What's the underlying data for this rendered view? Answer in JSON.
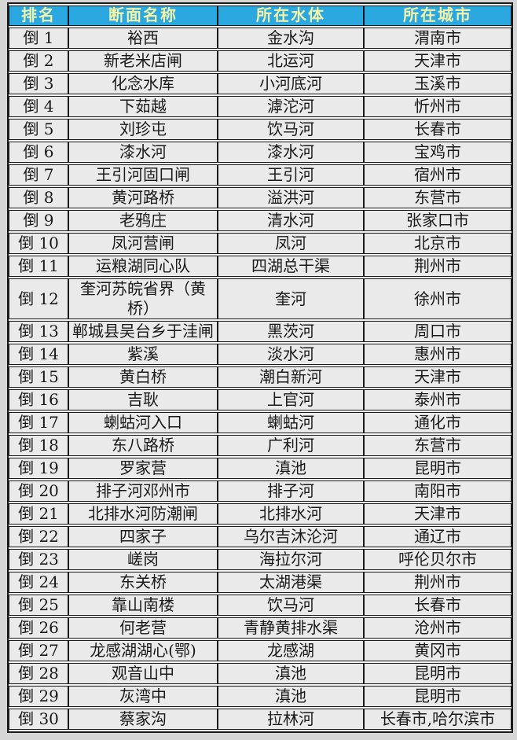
{
  "table": {
    "headers": [
      "排名",
      "断面名称",
      "所在水体",
      "所在城市"
    ],
    "rows": [
      {
        "rank": "倒 1",
        "name": "裕西",
        "water": "金水沟",
        "city": "渭南市"
      },
      {
        "rank": "倒 2",
        "name": "新老米店闸",
        "water": "北运河",
        "city": "天津市"
      },
      {
        "rank": "倒 3",
        "name": "化念水库",
        "water": "小河底河",
        "city": "玉溪市"
      },
      {
        "rank": "倒 4",
        "name": "下茹越",
        "water": "滹沱河",
        "city": "忻州市"
      },
      {
        "rank": "倒 5",
        "name": "刘珍屯",
        "water": "饮马河",
        "city": "长春市"
      },
      {
        "rank": "倒 6",
        "name": "漆水河",
        "water": "漆水河",
        "city": "宝鸡市"
      },
      {
        "rank": "倒 7",
        "name": "王引河固口闸",
        "water": "王引河",
        "city": "宿州市"
      },
      {
        "rank": "倒 8",
        "name": "黄河路桥",
        "water": "溢洪河",
        "city": "东营市"
      },
      {
        "rank": "倒 9",
        "name": "老鸦庄",
        "water": "清水河",
        "city": "张家口市"
      },
      {
        "rank": "倒 10",
        "name": "凤河营闸",
        "water": "凤河",
        "city": "北京市"
      },
      {
        "rank": "倒 11",
        "name": "运粮湖同心队",
        "water": "四湖总干渠",
        "city": "荆州市"
      },
      {
        "rank": "倒 12",
        "name": "奎河苏皖省界（黄桥）",
        "water": "奎河",
        "city": "徐州市"
      },
      {
        "rank": "倒 13",
        "name": "郸城县吴台乡于洼闸",
        "water": "黑茨河",
        "city": "周口市"
      },
      {
        "rank": "倒 14",
        "name": "紫溪",
        "water": "淡水河",
        "city": "惠州市"
      },
      {
        "rank": "倒 15",
        "name": "黄白桥",
        "water": "潮白新河",
        "city": "天津市"
      },
      {
        "rank": "倒 16",
        "name": "吉耿",
        "water": "上官河",
        "city": "泰州市"
      },
      {
        "rank": "倒 17",
        "name": "蝲蛄河入口",
        "water": "蝲蛄河",
        "city": "通化市"
      },
      {
        "rank": "倒 18",
        "name": "东八路桥",
        "water": "广利河",
        "city": "东营市"
      },
      {
        "rank": "倒 19",
        "name": "罗家营",
        "water": "滇池",
        "city": "昆明市"
      },
      {
        "rank": "倒 20",
        "name": "排子河邓州市",
        "water": "排子河",
        "city": "南阳市"
      },
      {
        "rank": "倒 21",
        "name": "北排水河防潮闸",
        "water": "北排水河",
        "city": "天津市"
      },
      {
        "rank": "倒 22",
        "name": "四家子",
        "water": "乌尔吉沐沦河",
        "city": "通辽市"
      },
      {
        "rank": "倒 23",
        "name": "嵯岗",
        "water": "海拉尔河",
        "city": "呼伦贝尔市"
      },
      {
        "rank": "倒 24",
        "name": "东关桥",
        "water": "太湖港渠",
        "city": "荆州市"
      },
      {
        "rank": "倒 25",
        "name": "靠山南楼",
        "water": "饮马河",
        "city": "长春市"
      },
      {
        "rank": "倒 26",
        "name": "何老营",
        "water": "青静黄排水渠",
        "city": "沧州市"
      },
      {
        "rank": "倒 27",
        "name": "龙感湖湖心(鄂)",
        "water": "龙感湖",
        "city": "黄冈市"
      },
      {
        "rank": "倒 28",
        "name": "观音山中",
        "water": "滇池",
        "city": "昆明市"
      },
      {
        "rank": "倒 29",
        "name": "灰湾中",
        "water": "滇池",
        "city": "昆明市"
      },
      {
        "rank": "倒 30",
        "name": "蔡家沟",
        "water": "拉林河",
        "city": "长春市,哈尔滨市"
      }
    ]
  },
  "colors": {
    "header_bg": "#2BA8E0",
    "header_text": "#F2F2A8",
    "cell_bg": "#EAEAEA",
    "border": "#1A1A1A",
    "page_bg": "#D6D6D6"
  }
}
